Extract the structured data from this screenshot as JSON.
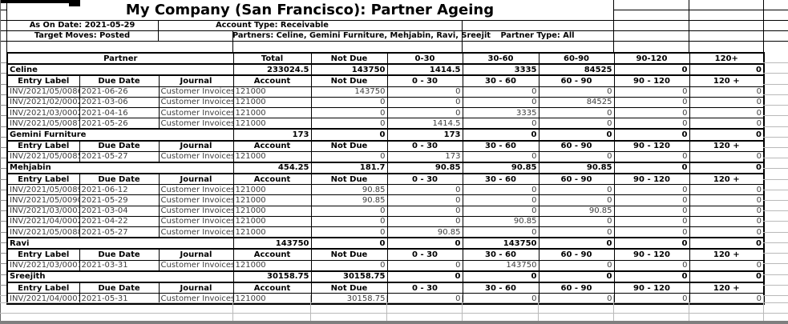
{
  "title": "My Company (San Francisco): Partner Ageing",
  "filters": {
    "as_on_date": "As On Date: 2021-05-29",
    "account_type": "Account Type: Receivable",
    "target_moves": "Target Moves: Posted",
    "partners": "Partners: Celine, Gemini Furniture, Mehjabin, Ravi, Sreejit",
    "partner_type": "Partner Type: All"
  },
  "table": {
    "main_header": [
      "Partner",
      "Total",
      "Not Due",
      "0-30",
      "30-60",
      "60-90",
      "90-120",
      "120+"
    ],
    "section_header": [
      "Entry Label",
      "Due Date",
      "Journal",
      "Account",
      "Not Due",
      "0 - 30",
      "30 - 60",
      "60 - 90",
      "90 - 120",
      "120 +"
    ],
    "sections": [
      {
        "partner": "Celine",
        "totals": [
          "233024.5",
          "143750",
          "1414.5",
          "3335",
          "84525",
          "0",
          "0"
        ],
        "rows": [
          [
            "INV/2021/05/0086",
            "2021-06-26",
            "Customer Invoices",
            "121000",
            "143750",
            "0",
            "0",
            "0",
            "0",
            "0"
          ],
          [
            "INV/2021/02/0002",
            "2021-03-06",
            "Customer Invoices",
            "121000",
            "0",
            "0",
            "0",
            "84525",
            "0",
            "0"
          ],
          [
            "INV/2021/03/0002",
            "2021-04-16",
            "Customer Invoices",
            "121000",
            "0",
            "0",
            "3335",
            "0",
            "0",
            "0"
          ],
          [
            "INV/2021/05/0087",
            "2021-05-26",
            "Customer Invoices",
            "121000",
            "0",
            "1414.5",
            "0",
            "0",
            "0",
            "0"
          ]
        ]
      },
      {
        "partner": "Gemini Furniture",
        "totals": [
          "173",
          "0",
          "173",
          "0",
          "0",
          "0",
          "0"
        ],
        "rows": [
          [
            "INV/2021/05/0085",
            "2021-05-27",
            "Customer Invoices",
            "121000",
            "0",
            "173",
            "0",
            "0",
            "0",
            "0"
          ]
        ]
      },
      {
        "partner": "Mehjabin",
        "totals": [
          "454.25",
          "181.7",
          "90.85",
          "90.85",
          "90.85",
          "0",
          "0"
        ],
        "rows": [
          [
            "INV/2021/05/0089",
            "2021-06-12",
            "Customer Invoices",
            "121000",
            "90.85",
            "0",
            "0",
            "0",
            "0",
            "0"
          ],
          [
            "INV/2021/05/0090",
            "2021-05-29",
            "Customer Invoices",
            "121000",
            "90.85",
            "0",
            "0",
            "0",
            "0",
            "0"
          ],
          [
            "INV/2021/03/0003",
            "2021-03-04",
            "Customer Invoices",
            "121000",
            "0",
            "0",
            "0",
            "90.85",
            "0",
            "0"
          ],
          [
            "INV/2021/04/0002",
            "2021-04-22",
            "Customer Invoices",
            "121000",
            "0",
            "0",
            "90.85",
            "0",
            "0",
            "0"
          ],
          [
            "INV/2021/05/0088",
            "2021-05-27",
            "Customer Invoices",
            "121000",
            "0",
            "90.85",
            "0",
            "0",
            "0",
            "0"
          ]
        ]
      },
      {
        "partner": "Ravi",
        "totals": [
          "143750",
          "0",
          "0",
          "143750",
          "0",
          "0",
          "0"
        ],
        "rows": [
          [
            "INV/2021/03/0001",
            "2021-03-31",
            "Customer Invoices",
            "121000",
            "0",
            "0",
            "143750",
            "0",
            "0",
            "0"
          ]
        ]
      },
      {
        "partner": "Sreejith",
        "totals": [
          "30158.75",
          "30158.75",
          "0",
          "0",
          "0",
          "0",
          "0"
        ],
        "rows": [
          [
            "INV/2021/04/0001",
            "2021-05-31",
            "Customer Invoices",
            "121000",
            "30158.75",
            "0",
            "0",
            "0",
            "0",
            "0"
          ]
        ]
      }
    ]
  }
}
